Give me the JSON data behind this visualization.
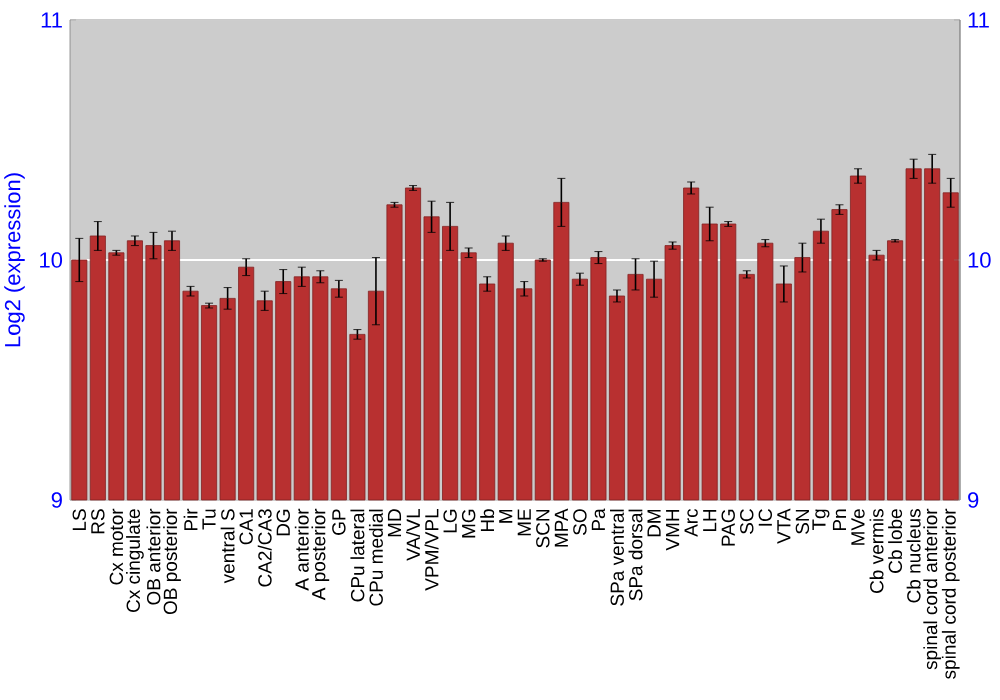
{
  "chart_data": {
    "type": "bar",
    "ylabel": "Log2 (expression)",
    "color": "#b83030",
    "categories": [
      "LS",
      "RS",
      "Cx motor",
      "Cx cingulate",
      "OB anterior",
      "OB posterior",
      "Pir",
      "Tu",
      "ventral S",
      "CA1",
      "CA2/CA3",
      "DG",
      "A anterior",
      "A posterior",
      "GP",
      "CPu lateral",
      "CPu medial",
      "MD",
      "VA/VL",
      "VPM/VPL",
      "LG",
      "MG",
      "Hb",
      "M",
      "ME",
      "SCN",
      "MPA",
      "SO",
      "Pa",
      "SPa ventral",
      "SPa dorsal",
      "DM",
      "VMH",
      "Arc",
      "LH",
      "PAG",
      "SC",
      "IC",
      "VTA",
      "SN",
      "Tg",
      "Pn",
      "MVe",
      "Cb vermis",
      "Cb lobe",
      "Cb nucleus",
      "spinal cord anterior",
      "spinal cord posterior"
    ],
    "values": [
      10.0,
      10.1,
      10.03,
      10.08,
      10.06,
      10.08,
      9.87,
      9.81,
      9.84,
      9.97,
      9.83,
      9.91,
      9.93,
      9.93,
      9.88,
      9.69,
      9.87,
      10.23,
      10.3,
      10.18,
      10.14,
      10.03,
      9.9,
      10.07,
      9.88,
      10.0,
      10.24,
      9.92,
      10.01,
      9.85,
      9.94,
      9.92,
      10.06,
      10.3,
      10.15,
      10.15,
      9.94,
      10.07,
      9.9,
      10.01,
      10.12,
      10.21,
      10.35,
      10.02,
      10.08,
      10.38,
      10.38,
      10.28
    ],
    "errors": [
      0.09,
      0.06,
      0.01,
      0.02,
      0.055,
      0.04,
      0.02,
      0.01,
      0.045,
      0.035,
      0.04,
      0.05,
      0.04,
      0.025,
      0.035,
      0.02,
      0.14,
      0.01,
      0.01,
      0.065,
      0.1,
      0.02,
      0.03,
      0.03,
      0.03,
      0.005,
      0.1,
      0.025,
      0.025,
      0.025,
      0.065,
      0.075,
      0.015,
      0.025,
      0.07,
      0.01,
      0.015,
      0.015,
      0.075,
      0.06,
      0.05,
      0.02,
      0.03,
      0.02,
      0.005,
      0.04,
      0.06,
      0.06
    ],
    "ylim": [
      9,
      11
    ],
    "yticks": [
      9,
      10,
      11
    ],
    "y2lim": [
      9,
      11
    ],
    "y2ticks": [
      9,
      10,
      11
    ],
    "grid": "y"
  }
}
